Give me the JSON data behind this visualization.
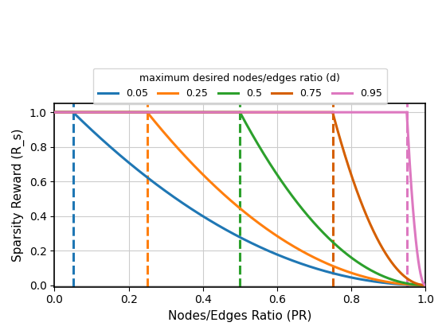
{
  "d_values": [
    0.05,
    0.25,
    0.5,
    0.75,
    0.95
  ],
  "colors": [
    "#1f77b4",
    "#ff7f0e",
    "#2ca02c",
    "#d55f00",
    "#dd78c0"
  ],
  "legend_title": "maximum desired nodes/edges ratio (d)",
  "legend_labels": [
    "0.05",
    "0.25",
    "0.5",
    "0.75",
    "0.95"
  ],
  "xlabel": "Nodes/Edges Ratio (PR)",
  "ylabel": "Sparsity Reward (R_s)",
  "xlim": [
    0.0,
    1.0
  ],
  "ylim": [
    -0.01,
    1.05
  ],
  "yticks": [
    0.0,
    0.2,
    0.4,
    0.6,
    0.8,
    1.0
  ],
  "xticks": [
    0.0,
    0.2,
    0.4,
    0.6,
    0.8,
    1.0
  ],
  "grid": true,
  "linewidth": 2.2,
  "legend_title_fontsize": 9,
  "legend_fontsize": 9,
  "axis_fontsize": 11,
  "figsize": [
    5.6,
    4.2
  ],
  "dpi": 100
}
